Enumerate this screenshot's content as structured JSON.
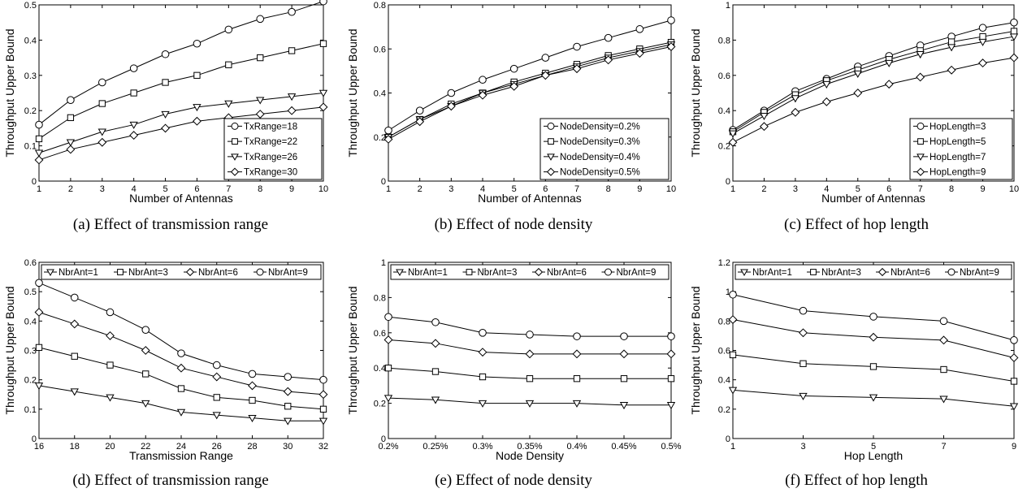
{
  "chart_data": [
    {
      "type": "line",
      "caption": "(a) Effect of transmission range",
      "xlabel": "Number of Antennas",
      "ylabel": "Throughput Upper Bound",
      "x": [
        1,
        2,
        3,
        4,
        5,
        6,
        7,
        8,
        9,
        10
      ],
      "xticks": [
        "1",
        "2",
        "3",
        "4",
        "5",
        "6",
        "7",
        "8",
        "9",
        "10"
      ],
      "ylim": [
        0,
        0.5
      ],
      "yticks": [
        "0",
        "0.1",
        "0.2",
        "0.3",
        "0.4",
        "0.5"
      ],
      "legend_position": "bottom-right",
      "series": [
        {
          "name": "TxRange=18",
          "marker": "circle",
          "values": [
            0.16,
            0.23,
            0.28,
            0.32,
            0.36,
            0.39,
            0.43,
            0.46,
            0.48,
            0.51
          ]
        },
        {
          "name": "TxRange=22",
          "marker": "square",
          "values": [
            0.12,
            0.18,
            0.22,
            0.25,
            0.28,
            0.3,
            0.33,
            0.35,
            0.37,
            0.39
          ]
        },
        {
          "name": "TxRange=26",
          "marker": "triangle-down",
          "values": [
            0.08,
            0.11,
            0.14,
            0.16,
            0.19,
            0.21,
            0.22,
            0.23,
            0.24,
            0.25
          ]
        },
        {
          "name": "TxRange=30",
          "marker": "diamond",
          "values": [
            0.06,
            0.09,
            0.11,
            0.13,
            0.15,
            0.17,
            0.18,
            0.19,
            0.2,
            0.21
          ]
        }
      ]
    },
    {
      "type": "line",
      "caption": "(b) Effect of node density",
      "xlabel": "Number of Antennas",
      "ylabel": "Throughput Upper Bound",
      "x": [
        1,
        2,
        3,
        4,
        5,
        6,
        7,
        8,
        9,
        10
      ],
      "xticks": [
        "1",
        "2",
        "3",
        "4",
        "5",
        "6",
        "7",
        "8",
        "9",
        "10"
      ],
      "ylim": [
        0,
        0.8
      ],
      "yticks": [
        "0",
        "0.2",
        "0.4",
        "0.6",
        "0.8"
      ],
      "legend_position": "bottom-right",
      "series": [
        {
          "name": "NodeDensity=0.2%",
          "marker": "circle",
          "values": [
            0.23,
            0.32,
            0.4,
            0.46,
            0.51,
            0.56,
            0.61,
            0.65,
            0.69,
            0.73
          ]
        },
        {
          "name": "NodeDensity=0.3%",
          "marker": "square",
          "values": [
            0.2,
            0.28,
            0.35,
            0.4,
            0.45,
            0.49,
            0.53,
            0.57,
            0.6,
            0.63
          ]
        },
        {
          "name": "NodeDensity=0.4%",
          "marker": "triangle-down",
          "values": [
            0.2,
            0.28,
            0.34,
            0.4,
            0.44,
            0.48,
            0.52,
            0.56,
            0.59,
            0.62
          ]
        },
        {
          "name": "NodeDensity=0.5%",
          "marker": "diamond",
          "values": [
            0.19,
            0.27,
            0.34,
            0.39,
            0.43,
            0.48,
            0.51,
            0.55,
            0.58,
            0.61
          ]
        }
      ]
    },
    {
      "type": "line",
      "caption": "(c) Effect of hop length",
      "xlabel": "Number of Antennas",
      "ylabel": "Throughput Upper Bound",
      "x": [
        1,
        2,
        3,
        4,
        5,
        6,
        7,
        8,
        9,
        10
      ],
      "xticks": [
        "1",
        "2",
        "3",
        "4",
        "5",
        "6",
        "7",
        "8",
        "9",
        "10"
      ],
      "ylim": [
        0,
        1
      ],
      "yticks": [
        "0",
        "0.2",
        "0.4",
        "0.6",
        "0.8",
        "1"
      ],
      "legend_position": "bottom-right",
      "series": [
        {
          "name": "HopLength=3",
          "marker": "circle",
          "values": [
            0.29,
            0.4,
            0.51,
            0.58,
            0.65,
            0.71,
            0.77,
            0.82,
            0.87,
            0.9
          ]
        },
        {
          "name": "HopLength=5",
          "marker": "square",
          "values": [
            0.28,
            0.39,
            0.49,
            0.57,
            0.63,
            0.69,
            0.74,
            0.79,
            0.82,
            0.85
          ]
        },
        {
          "name": "HopLength=7",
          "marker": "triangle-down",
          "values": [
            0.27,
            0.37,
            0.47,
            0.55,
            0.61,
            0.67,
            0.72,
            0.76,
            0.79,
            0.82
          ]
        },
        {
          "name": "HopLength=9",
          "marker": "diamond",
          "values": [
            0.22,
            0.31,
            0.39,
            0.45,
            0.5,
            0.55,
            0.59,
            0.63,
            0.67,
            0.7
          ]
        }
      ]
    },
    {
      "type": "line",
      "caption": "(d) Effect of transmission range",
      "xlabel": "Transmission Range",
      "ylabel": "Throughput Upper Bound",
      "x": [
        16,
        18,
        20,
        22,
        24,
        26,
        28,
        30,
        32
      ],
      "xticks": [
        "16",
        "18",
        "20",
        "22",
        "24",
        "26",
        "28",
        "30",
        "32"
      ],
      "ylim": [
        0,
        0.6
      ],
      "yticks": [
        "0",
        "0.1",
        "0.2",
        "0.3",
        "0.4",
        "0.5",
        "0.6"
      ],
      "legend_position": "top",
      "series": [
        {
          "name": "NbrAnt=1",
          "marker": "triangle-down",
          "values": [
            0.18,
            0.16,
            0.14,
            0.12,
            0.09,
            0.08,
            0.07,
            0.06,
            0.06
          ]
        },
        {
          "name": "NbrAnt=3",
          "marker": "square",
          "values": [
            0.31,
            0.28,
            0.25,
            0.22,
            0.17,
            0.14,
            0.13,
            0.11,
            0.1
          ]
        },
        {
          "name": "NbrAnt=6",
          "marker": "diamond",
          "values": [
            0.43,
            0.39,
            0.35,
            0.3,
            0.24,
            0.21,
            0.18,
            0.16,
            0.15
          ]
        },
        {
          "name": "NbrAnt=9",
          "marker": "circle",
          "values": [
            0.53,
            0.48,
            0.43,
            0.37,
            0.29,
            0.25,
            0.22,
            0.21,
            0.2
          ]
        }
      ]
    },
    {
      "type": "line",
      "caption": "(e) Effect of node density",
      "xlabel": "Node Density",
      "ylabel": "Throughput Upper Bound",
      "x": [
        0.2,
        0.25,
        0.3,
        0.35,
        0.4,
        0.45,
        0.5
      ],
      "xticks": [
        "0.2%",
        "0.25%",
        "0.3%",
        "0.35%",
        "0.4%",
        "0.45%",
        "0.5%"
      ],
      "ylim": [
        0,
        1
      ],
      "yticks": [
        "0",
        "0.2",
        "0.4",
        "0.6",
        "0.8",
        "1"
      ],
      "legend_position": "top",
      "series": [
        {
          "name": "NbrAnt=1",
          "marker": "triangle-down",
          "values": [
            0.23,
            0.22,
            0.2,
            0.2,
            0.2,
            0.19,
            0.19
          ]
        },
        {
          "name": "NbrAnt=3",
          "marker": "square",
          "values": [
            0.4,
            0.38,
            0.35,
            0.34,
            0.34,
            0.34,
            0.34
          ]
        },
        {
          "name": "NbrAnt=6",
          "marker": "diamond",
          "values": [
            0.56,
            0.54,
            0.49,
            0.48,
            0.48,
            0.48,
            0.48
          ]
        },
        {
          "name": "NbrAnt=9",
          "marker": "circle",
          "values": [
            0.69,
            0.66,
            0.6,
            0.59,
            0.58,
            0.58,
            0.58
          ]
        }
      ]
    },
    {
      "type": "line",
      "caption": "(f) Effect of hop length",
      "xlabel": "Hop Length",
      "ylabel": "Throughput Upper Bound",
      "x": [
        1,
        3,
        5,
        7,
        9
      ],
      "xticks": [
        "1",
        "3",
        "5",
        "7",
        "9"
      ],
      "ylim": [
        0,
        1.2
      ],
      "yticks": [
        "0",
        "0.2",
        "0.4",
        "0.6",
        "0.8",
        "1",
        "1.2"
      ],
      "legend_position": "top",
      "series": [
        {
          "name": "NbrAnt=1",
          "marker": "triangle-down",
          "values": [
            0.33,
            0.29,
            0.28,
            0.27,
            0.22
          ]
        },
        {
          "name": "NbrAnt=3",
          "marker": "square",
          "values": [
            0.57,
            0.51,
            0.49,
            0.47,
            0.39
          ]
        },
        {
          "name": "NbrAnt=6",
          "marker": "diamond",
          "values": [
            0.81,
            0.72,
            0.69,
            0.67,
            0.55
          ]
        },
        {
          "name": "NbrAnt=9",
          "marker": "circle",
          "values": [
            0.98,
            0.87,
            0.83,
            0.8,
            0.67
          ]
        }
      ]
    }
  ]
}
